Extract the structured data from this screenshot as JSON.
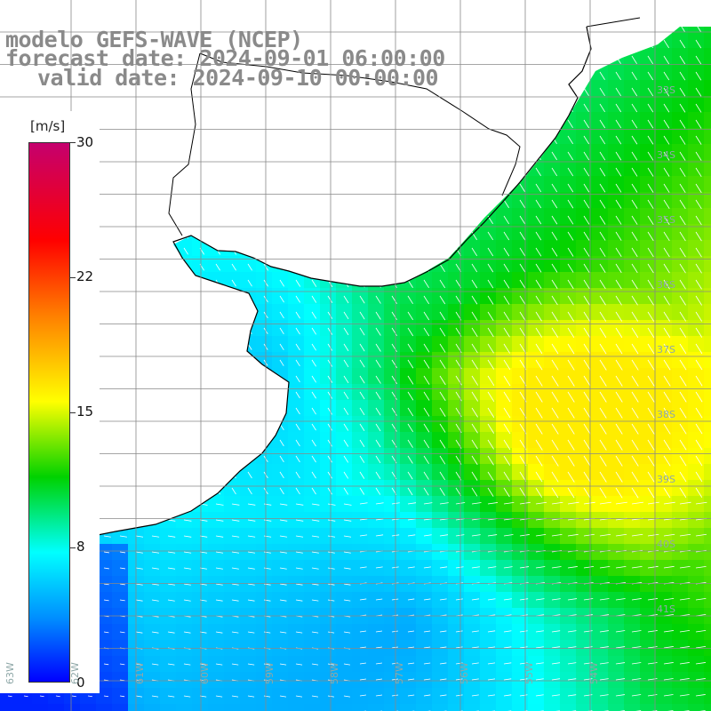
{
  "header": {
    "line1": "modelo GEFS-WAVE (NCEP)",
    "line2": "forecast date: 2024-09-01 06:00:00",
    "line3": "valid date: 2024-09-10 00:00:00"
  },
  "legend": {
    "unit": "[m/s]",
    "ticks": [
      "30",
      "22",
      "15",
      "8",
      "0"
    ],
    "tick_values": [
      30,
      22,
      15,
      8,
      0
    ],
    "min": 0,
    "max": 30,
    "colors": [
      "#0000ff",
      "#0090ff",
      "#00ffff",
      "#00d200",
      "#ffff00",
      "#ff7f00",
      "#ff0000",
      "#c5006e"
    ]
  },
  "map": {
    "land_color": "#ffffff",
    "grid_color": "#888888",
    "coast_color": "#000000",
    "arrow_color": "#ffffff",
    "lat_labels": [
      "33S",
      "34S",
      "35S",
      "36S",
      "37S",
      "38S",
      "39S",
      "40S",
      "41S"
    ],
    "lon_labels": [
      "63W",
      "62W",
      "61W",
      "60W",
      "59W",
      "58W",
      "57W",
      "56W",
      "55W",
      "54W"
    ]
  }
}
